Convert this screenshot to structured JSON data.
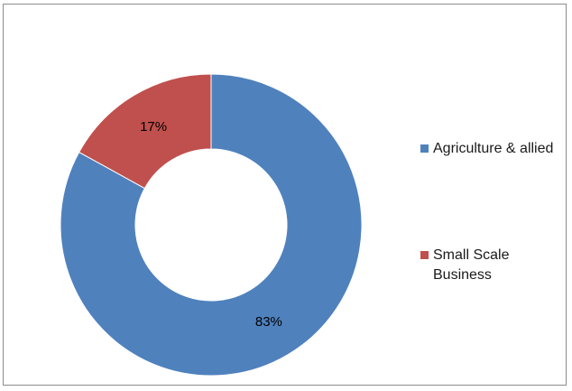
{
  "chart_data": {
    "type": "pie",
    "donut": true,
    "categories": [
      "Agriculture & allied",
      "Small Scale Business"
    ],
    "values": [
      83,
      17
    ],
    "data_labels": [
      "83%",
      "17%"
    ],
    "colors": [
      "#4F81BD",
      "#C0504D"
    ],
    "legend": {
      "placement": "right",
      "entries": [
        "Agriculture & allied",
        "Small Scale Business"
      ]
    },
    "title": ""
  }
}
